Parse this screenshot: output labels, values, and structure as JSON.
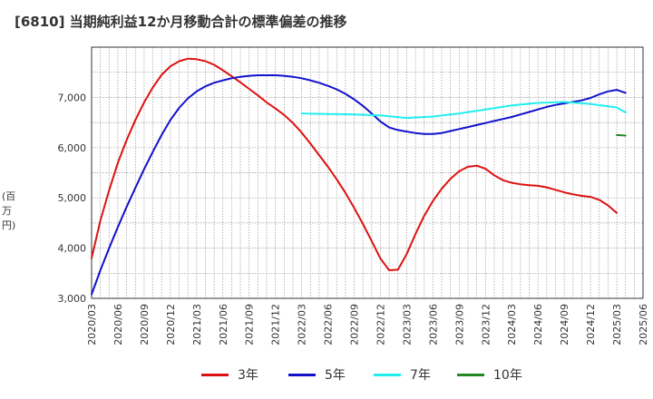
{
  "title": "[6810]  当期純利益12か月移動合計の標準偏差の推移",
  "chart_data": {
    "type": "line",
    "ylabel": "(百万円)",
    "ylim": [
      3000,
      8000
    ],
    "yticks": [
      3000,
      4000,
      5000,
      6000,
      7000
    ],
    "ytick_labels": [
      "3,000",
      "4,000",
      "5,000",
      "6,000",
      "7,000"
    ],
    "xlim": [
      "2020/03",
      "2025/06"
    ],
    "xtick_labels": [
      "2020/03",
      "2020/06",
      "2020/09",
      "2020/12",
      "2021/03",
      "2021/06",
      "2021/09",
      "2021/12",
      "2022/03",
      "2022/06",
      "2022/09",
      "2022/12",
      "2023/03",
      "2023/06",
      "2023/09",
      "2023/12",
      "2024/03",
      "2024/06",
      "2024/09",
      "2024/12",
      "2025/03",
      "2025/06"
    ],
    "grid": true,
    "legend": "bottom",
    "series": [
      {
        "name": "3年",
        "color": "#dd1111",
        "points": [
          [
            "2020/03",
            3800
          ],
          [
            "2020/04",
            4550
          ],
          [
            "2020/05",
            5150
          ],
          [
            "2020/06",
            5700
          ],
          [
            "2020/07",
            6150
          ],
          [
            "2020/08",
            6550
          ],
          [
            "2020/09",
            6900
          ],
          [
            "2020/10",
            7200
          ],
          [
            "2020/11",
            7450
          ],
          [
            "2020/12",
            7620
          ],
          [
            "2021/01",
            7720
          ],
          [
            "2021/02",
            7770
          ],
          [
            "2021/03",
            7760
          ],
          [
            "2021/04",
            7720
          ],
          [
            "2021/05",
            7650
          ],
          [
            "2021/06",
            7540
          ],
          [
            "2021/07",
            7420
          ],
          [
            "2021/08",
            7300
          ],
          [
            "2021/09",
            7170
          ],
          [
            "2021/10",
            7040
          ],
          [
            "2021/11",
            6900
          ],
          [
            "2021/12",
            6780
          ],
          [
            "2022/01",
            6650
          ],
          [
            "2022/02",
            6490
          ],
          [
            "2022/03",
            6300
          ],
          [
            "2022/04",
            6080
          ],
          [
            "2022/05",
            5850
          ],
          [
            "2022/06",
            5620
          ],
          [
            "2022/07",
            5370
          ],
          [
            "2022/08",
            5100
          ],
          [
            "2022/09",
            4800
          ],
          [
            "2022/10",
            4480
          ],
          [
            "2022/11",
            4140
          ],
          [
            "2022/12",
            3790
          ],
          [
            "2023/01",
            3560
          ],
          [
            "2023/02",
            3570
          ],
          [
            "2023/03",
            3880
          ],
          [
            "2023/04",
            4280
          ],
          [
            "2023/05",
            4640
          ],
          [
            "2023/06",
            4940
          ],
          [
            "2023/07",
            5180
          ],
          [
            "2023/08",
            5380
          ],
          [
            "2023/09",
            5530
          ],
          [
            "2023/10",
            5620
          ],
          [
            "2023/11",
            5640
          ],
          [
            "2023/12",
            5580
          ],
          [
            "2024/01",
            5450
          ],
          [
            "2024/02",
            5350
          ],
          [
            "2024/03",
            5300
          ],
          [
            "2024/04",
            5270
          ],
          [
            "2024/05",
            5250
          ],
          [
            "2024/06",
            5240
          ],
          [
            "2024/07",
            5210
          ],
          [
            "2024/08",
            5160
          ],
          [
            "2024/09",
            5110
          ],
          [
            "2024/10",
            5070
          ],
          [
            "2024/11",
            5040
          ],
          [
            "2024/12",
            5020
          ],
          [
            "2025/01",
            4960
          ],
          [
            "2025/02",
            4850
          ],
          [
            "2025/03",
            4700
          ]
        ]
      },
      {
        "name": "5年",
        "color": "#1111cc",
        "points": [
          [
            "2020/03",
            3080
          ],
          [
            "2020/04",
            3560
          ],
          [
            "2020/05",
            4000
          ],
          [
            "2020/06",
            4420
          ],
          [
            "2020/07",
            4820
          ],
          [
            "2020/08",
            5200
          ],
          [
            "2020/09",
            5570
          ],
          [
            "2020/10",
            5920
          ],
          [
            "2020/11",
            6250
          ],
          [
            "2020/12",
            6550
          ],
          [
            "2021/01",
            6790
          ],
          [
            "2021/02",
            6980
          ],
          [
            "2021/03",
            7120
          ],
          [
            "2021/04",
            7220
          ],
          [
            "2021/05",
            7290
          ],
          [
            "2021/06",
            7340
          ],
          [
            "2021/07",
            7380
          ],
          [
            "2021/08",
            7410
          ],
          [
            "2021/09",
            7430
          ],
          [
            "2021/10",
            7440
          ],
          [
            "2021/11",
            7440
          ],
          [
            "2021/12",
            7440
          ],
          [
            "2022/01",
            7430
          ],
          [
            "2022/02",
            7410
          ],
          [
            "2022/03",
            7380
          ],
          [
            "2022/04",
            7340
          ],
          [
            "2022/05",
            7290
          ],
          [
            "2022/06",
            7230
          ],
          [
            "2022/07",
            7160
          ],
          [
            "2022/08",
            7070
          ],
          [
            "2022/09",
            6960
          ],
          [
            "2022/10",
            6830
          ],
          [
            "2022/11",
            6680
          ],
          [
            "2022/12",
            6520
          ],
          [
            "2023/01",
            6400
          ],
          [
            "2023/02",
            6350
          ],
          [
            "2023/03",
            6320
          ],
          [
            "2023/04",
            6290
          ],
          [
            "2023/05",
            6270
          ],
          [
            "2023/06",
            6270
          ],
          [
            "2023/07",
            6290
          ],
          [
            "2023/08",
            6330
          ],
          [
            "2023/09",
            6370
          ],
          [
            "2023/10",
            6410
          ],
          [
            "2023/11",
            6450
          ],
          [
            "2023/12",
            6490
          ],
          [
            "2024/01",
            6530
          ],
          [
            "2024/02",
            6570
          ],
          [
            "2024/03",
            6610
          ],
          [
            "2024/04",
            6660
          ],
          [
            "2024/05",
            6710
          ],
          [
            "2024/06",
            6760
          ],
          [
            "2024/07",
            6810
          ],
          [
            "2024/08",
            6850
          ],
          [
            "2024/09",
            6880
          ],
          [
            "2024/10",
            6910
          ],
          [
            "2024/11",
            6940
          ],
          [
            "2024/12",
            6990
          ],
          [
            "2025/01",
            7060
          ],
          [
            "2025/02",
            7120
          ],
          [
            "2025/03",
            7150
          ],
          [
            "2025/04",
            7090
          ]
        ]
      },
      {
        "name": "7年",
        "color": "#22eeee",
        "points": [
          [
            "2022/03",
            6680
          ],
          [
            "2022/06",
            6670
          ],
          [
            "2022/09",
            6660
          ],
          [
            "2022/12",
            6640
          ],
          [
            "2023/03",
            6590
          ],
          [
            "2023/06",
            6620
          ],
          [
            "2023/09",
            6680
          ],
          [
            "2023/12",
            6760
          ],
          [
            "2024/03",
            6840
          ],
          [
            "2024/06",
            6890
          ],
          [
            "2024/09",
            6910
          ],
          [
            "2024/12",
            6870
          ],
          [
            "2025/03",
            6800
          ],
          [
            "2025/04",
            6700
          ]
        ]
      },
      {
        "name": "10年",
        "color": "#228822",
        "points": [
          [
            "2025/03",
            6250
          ],
          [
            "2025/04",
            6240
          ]
        ]
      }
    ]
  }
}
